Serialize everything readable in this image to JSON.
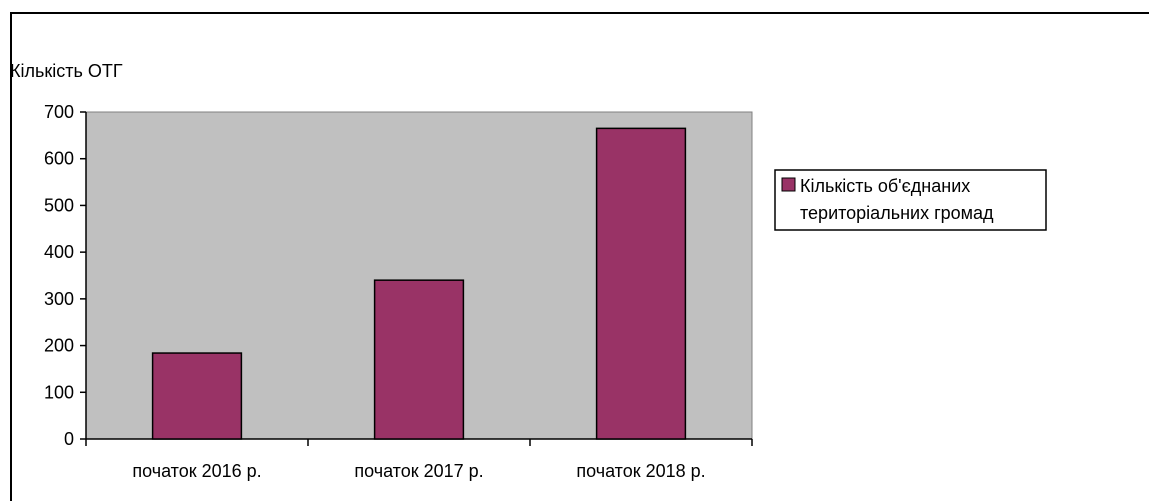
{
  "chart_data": {
    "type": "bar",
    "title": "",
    "xlabel": "",
    "ylabel": "Кількість ОТГ",
    "ylim": [
      0,
      700
    ],
    "yticks": [
      0,
      100,
      200,
      300,
      400,
      500,
      600,
      700
    ],
    "categories": [
      "початок 2016 р.",
      "початок 2017 р.",
      "початок 2018 р."
    ],
    "series": [
      {
        "name": "Кількість об'єднаних територіальних громад",
        "values": [
          184,
          340,
          665
        ]
      }
    ],
    "legend": {
      "position": "right",
      "lines": [
        "Кількість об'єднаних",
        "територіальних громад"
      ]
    },
    "colors": {
      "bar": "#993366",
      "plot_background": "#c0c0c0",
      "frame": "#000000"
    },
    "grid": false
  }
}
